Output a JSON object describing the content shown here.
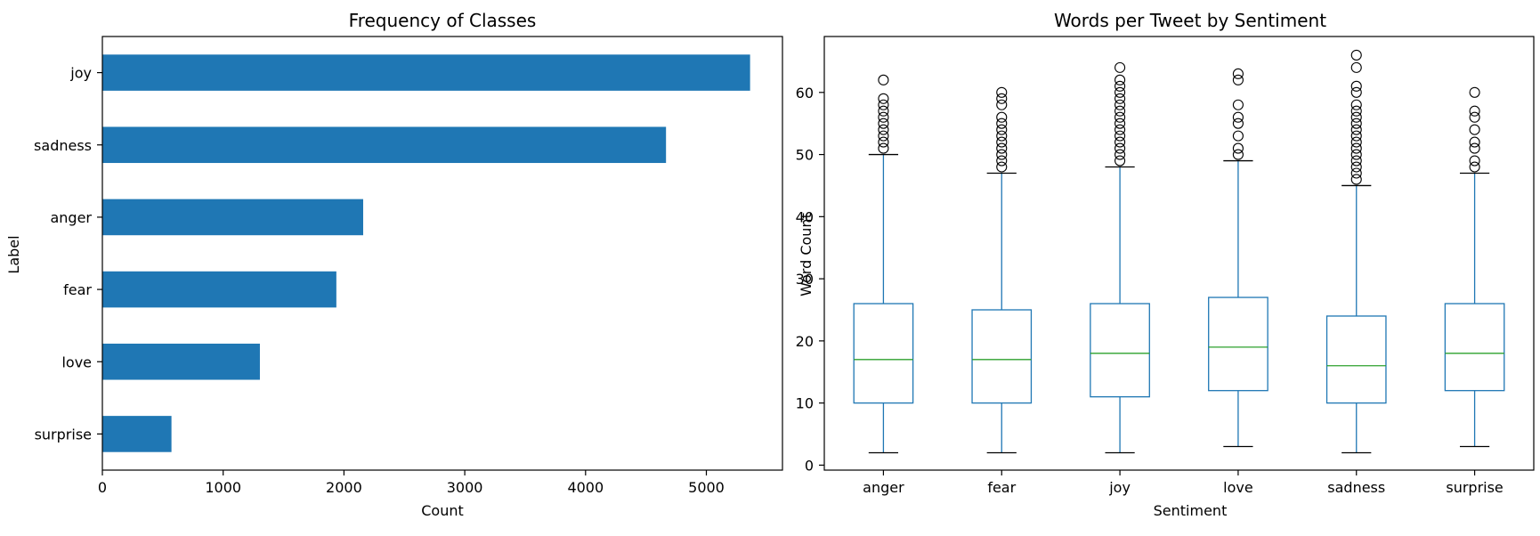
{
  "chart_data": [
    {
      "type": "bar",
      "orientation": "horizontal",
      "title": "Frequency of Classes",
      "xlabel": "Count",
      "ylabel": "Label",
      "categories": [
        "surprise",
        "love",
        "fear",
        "anger",
        "sadness",
        "joy"
      ],
      "values": [
        572,
        1304,
        1937,
        2159,
        4666,
        5362
      ],
      "xlim": [
        0,
        5630
      ],
      "xticks": [
        0,
        1000,
        2000,
        3000,
        4000,
        5000
      ],
      "color": "#1f77b4",
      "grid": false
    },
    {
      "type": "box",
      "title": "Words per Tweet by Sentiment",
      "xlabel": "Sentiment",
      "ylabel": "Word Count",
      "categories": [
        "anger",
        "fear",
        "joy",
        "love",
        "sadness",
        "surprise"
      ],
      "ylim": [
        -0.8,
        69
      ],
      "yticks": [
        0,
        10,
        20,
        30,
        40,
        50,
        60
      ],
      "box_color": "#1f77b4",
      "median_color": "#2ca02c",
      "grid": false,
      "boxes": [
        {
          "name": "anger",
          "whislo": 2,
          "q1": 10,
          "med": 17,
          "q3": 26,
          "whishi": 50,
          "fliers": [
            51,
            52,
            53,
            54,
            55,
            56,
            57,
            58,
            59,
            62
          ]
        },
        {
          "name": "fear",
          "whislo": 2,
          "q1": 10,
          "med": 17,
          "q3": 25,
          "whishi": 47,
          "fliers": [
            48,
            49,
            50,
            51,
            52,
            53,
            54,
            55,
            56,
            58,
            59,
            60
          ]
        },
        {
          "name": "joy",
          "whislo": 2,
          "q1": 11,
          "med": 18,
          "q3": 26,
          "whishi": 48,
          "fliers": [
            49,
            50,
            51,
            52,
            53,
            54,
            55,
            56,
            57,
            58,
            59,
            60,
            61,
            62,
            64
          ]
        },
        {
          "name": "love",
          "whislo": 3,
          "q1": 12,
          "med": 19,
          "q3": 27,
          "whishi": 49,
          "fliers": [
            50,
            51,
            53,
            55,
            56,
            58,
            62,
            63
          ]
        },
        {
          "name": "sadness",
          "whislo": 2,
          "q1": 10,
          "med": 16,
          "q3": 24,
          "whishi": 45,
          "fliers": [
            46,
            47,
            48,
            49,
            50,
            51,
            52,
            53,
            54,
            55,
            56,
            57,
            58,
            60,
            61,
            64,
            66
          ]
        },
        {
          "name": "surprise",
          "whislo": 3,
          "q1": 12,
          "med": 18,
          "q3": 26,
          "whishi": 47,
          "fliers": [
            48,
            49,
            51,
            52,
            54,
            56,
            57,
            60
          ]
        }
      ]
    }
  ]
}
